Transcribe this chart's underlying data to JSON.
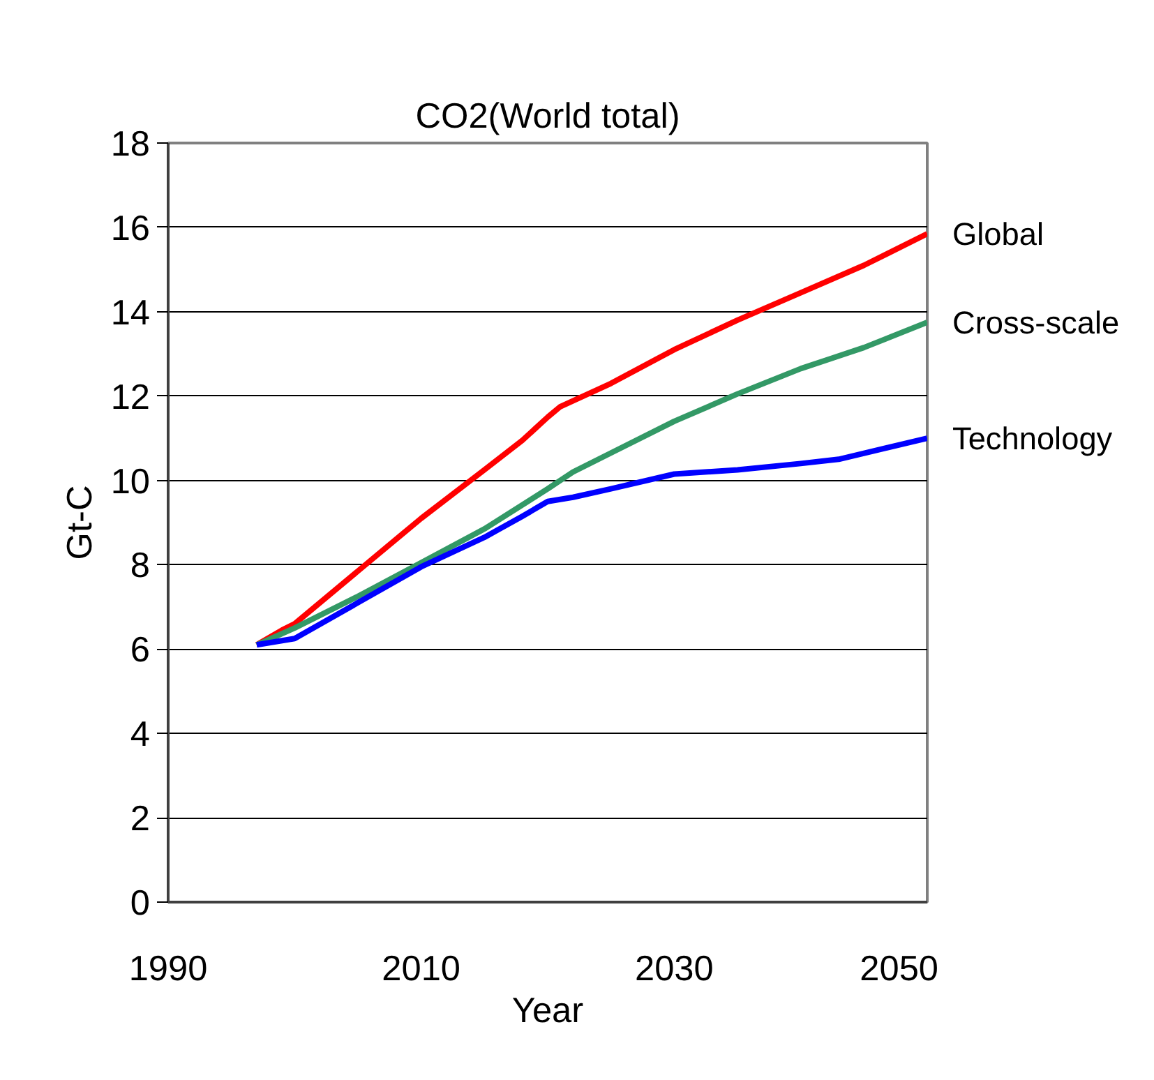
{
  "chart_data": {
    "type": "line",
    "title": "CO2(World total)",
    "xlabel": "Year",
    "ylabel": "Gt-C",
    "xlim": [
      1990,
      2050
    ],
    "xticks": [
      1990,
      2010,
      2030,
      2050
    ],
    "ylim": [
      0,
      18
    ],
    "yticks": [
      0,
      2,
      4,
      6,
      8,
      10,
      12,
      14,
      16,
      18
    ],
    "grid": "y",
    "legend": false,
    "marker": "none",
    "line_style": "solid",
    "series": [
      {
        "name": "Global",
        "color": "#ff0000",
        "x": [
          1997,
          1999,
          2000,
          2005,
          2010,
          2015,
          2018,
          2020,
          2021,
          2025,
          2030,
          2035,
          2040,
          2045,
          2050
        ],
        "values": [
          6.1,
          6.45,
          6.6,
          7.85,
          9.1,
          10.25,
          10.95,
          11.5,
          11.75,
          12.3,
          13.1,
          13.8,
          14.45,
          15.1,
          15.85
        ]
      },
      {
        "name": "Cross-scale",
        "color": "#339966",
        "x": [
          1997,
          2000,
          2005,
          2010,
          2015,
          2020,
          2022,
          2025,
          2030,
          2035,
          2040,
          2045,
          2050
        ],
        "values": [
          6.1,
          6.5,
          7.25,
          8.05,
          8.85,
          9.8,
          10.2,
          10.65,
          11.4,
          12.05,
          12.65,
          13.15,
          13.75
        ]
      },
      {
        "name": "Technology",
        "color": "#0000ff",
        "x": [
          1997,
          1999,
          2000,
          2005,
          2010,
          2015,
          2018,
          2020,
          2022,
          2025,
          2030,
          2035,
          2040,
          2043,
          2050
        ],
        "values": [
          6.1,
          6.2,
          6.25,
          7.1,
          7.95,
          8.65,
          9.15,
          9.5,
          9.6,
          9.8,
          10.15,
          10.25,
          10.4,
          10.5,
          11.0
        ]
      }
    ]
  }
}
